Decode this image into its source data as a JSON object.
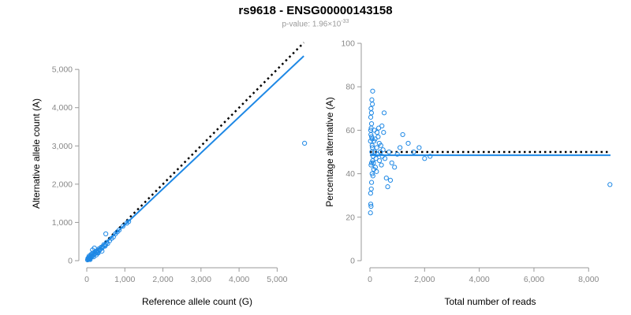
{
  "header": {
    "title": "rs9618 - ENSG00000143158",
    "pvalue_prefix": "p-value: 1.96×10",
    "pvalue_exp": "-33"
  },
  "colors": {
    "accent": "#1e88e5",
    "axis": "#999999",
    "reference": "#000000"
  },
  "chart_data": [
    {
      "type": "scatter",
      "xlabel": "Reference allele count (G)",
      "ylabel": "Alternative allele count (A)",
      "xlim": [
        0,
        5800
      ],
      "ylim": [
        0,
        5600
      ],
      "xticks": [
        0,
        1000,
        2000,
        3000,
        4000,
        5000
      ],
      "xtick_labels": [
        "0",
        "1,000",
        "2,000",
        "3,000",
        "4,000",
        "5,000"
      ],
      "yticks": [
        0,
        1000,
        2000,
        3000,
        4000,
        5000
      ],
      "ytick_labels": [
        "0",
        "1,000",
        "2,000",
        "3,000",
        "4,000",
        "5,000"
      ],
      "grid": false,
      "points": [
        [
          20,
          20
        ],
        [
          40,
          30
        ],
        [
          60,
          50
        ],
        [
          80,
          60
        ],
        [
          30,
          60
        ],
        [
          50,
          80
        ],
        [
          70,
          40
        ],
        [
          100,
          80
        ],
        [
          90,
          110
        ],
        [
          120,
          100
        ],
        [
          130,
          150
        ],
        [
          150,
          120
        ],
        [
          160,
          200
        ],
        [
          180,
          150
        ],
        [
          200,
          170
        ],
        [
          210,
          220
        ],
        [
          230,
          190
        ],
        [
          250,
          250
        ],
        [
          260,
          220
        ],
        [
          280,
          200
        ],
        [
          300,
          260
        ],
        [
          320,
          310
        ],
        [
          340,
          280
        ],
        [
          360,
          300
        ],
        [
          380,
          350
        ],
        [
          400,
          330
        ],
        [
          420,
          360
        ],
        [
          450,
          420
        ],
        [
          470,
          400
        ],
        [
          480,
          380
        ],
        [
          500,
          420
        ],
        [
          520,
          480
        ],
        [
          550,
          450
        ],
        [
          600,
          520
        ],
        [
          650,
          580
        ],
        [
          700,
          620
        ],
        [
          750,
          700
        ],
        [
          800,
          750
        ],
        [
          850,
          800
        ],
        [
          950,
          900
        ],
        [
          1050,
          980
        ],
        [
          1100,
          1020
        ],
        [
          200,
          330
        ],
        [
          150,
          280
        ],
        [
          300,
          200
        ],
        [
          400,
          250
        ],
        [
          250,
          150
        ],
        [
          180,
          100
        ],
        [
          110,
          160
        ],
        [
          60,
          120
        ],
        [
          90,
          30
        ],
        [
          500,
          700
        ],
        [
          5720,
          3070
        ]
      ],
      "lines": [
        {
          "style": "dotted",
          "color": "#000000",
          "x": [
            0,
            5700
          ],
          "y": [
            0,
            5700
          ]
        },
        {
          "style": "solid",
          "color": "#1e88e5",
          "x": [
            0,
            5700
          ],
          "y": [
            0,
            5350
          ]
        }
      ]
    },
    {
      "type": "scatter",
      "xlabel": "Total number of reads",
      "ylabel": "Percentage alternative (A)",
      "xlim": [
        0,
        8800
      ],
      "ylim": [
        0,
        100
      ],
      "xticks": [
        0,
        2000,
        4000,
        6000,
        8000
      ],
      "xtick_labels": [
        "0",
        "2,000",
        "4,000",
        "6,000",
        "8,000"
      ],
      "yticks": [
        0,
        20,
        40,
        60,
        80,
        100
      ],
      "ytick_labels": [
        "0",
        "20",
        "40",
        "60",
        "80",
        "100"
      ],
      "grid": false,
      "points": [
        [
          20,
          22
        ],
        [
          30,
          26
        ],
        [
          40,
          25
        ],
        [
          25,
          31
        ],
        [
          50,
          33
        ],
        [
          60,
          36
        ],
        [
          80,
          40
        ],
        [
          40,
          44
        ],
        [
          100,
          46
        ],
        [
          70,
          50
        ],
        [
          20,
          55
        ],
        [
          35,
          58
        ],
        [
          45,
          61
        ],
        [
          60,
          63
        ],
        [
          30,
          66
        ],
        [
          55,
          68
        ],
        [
          40,
          70
        ],
        [
          90,
          72
        ],
        [
          70,
          74
        ],
        [
          100,
          78
        ],
        [
          30,
          60
        ],
        [
          60,
          57
        ],
        [
          80,
          53
        ],
        [
          90,
          52
        ],
        [
          120,
          48
        ],
        [
          130,
          45
        ],
        [
          150,
          55
        ],
        [
          180,
          50
        ],
        [
          200,
          43
        ],
        [
          220,
          47
        ],
        [
          250,
          52
        ],
        [
          280,
          49
        ],
        [
          300,
          57
        ],
        [
          320,
          61
        ],
        [
          350,
          46
        ],
        [
          380,
          50
        ],
        [
          400,
          53
        ],
        [
          420,
          44
        ],
        [
          450,
          48
        ],
        [
          480,
          51
        ],
        [
          500,
          59
        ],
        [
          550,
          47
        ],
        [
          600,
          38
        ],
        [
          650,
          34
        ],
        [
          700,
          50
        ],
        [
          750,
          37
        ],
        [
          800,
          45
        ],
        [
          900,
          43
        ],
        [
          1000,
          49
        ],
        [
          1100,
          52
        ],
        [
          1200,
          58
        ],
        [
          1400,
          54
        ],
        [
          1600,
          50
        ],
        [
          1800,
          52
        ],
        [
          2000,
          47
        ],
        [
          2200,
          48
        ],
        [
          60,
          45
        ],
        [
          80,
          56
        ],
        [
          110,
          39
        ],
        [
          140,
          42
        ],
        [
          160,
          60
        ],
        [
          190,
          56
        ],
        [
          240,
          41
        ],
        [
          260,
          59
        ],
        [
          340,
          54
        ],
        [
          440,
          62
        ],
        [
          520,
          68
        ],
        [
          8780,
          35
        ]
      ],
      "lines": [
        {
          "style": "dotted",
          "color": "#000000",
          "x": [
            0,
            8700
          ],
          "y": [
            50,
            50
          ]
        },
        {
          "style": "solid",
          "color": "#1e88e5",
          "x": [
            0,
            8800
          ],
          "y": [
            48.5,
            48.5
          ]
        }
      ]
    }
  ]
}
